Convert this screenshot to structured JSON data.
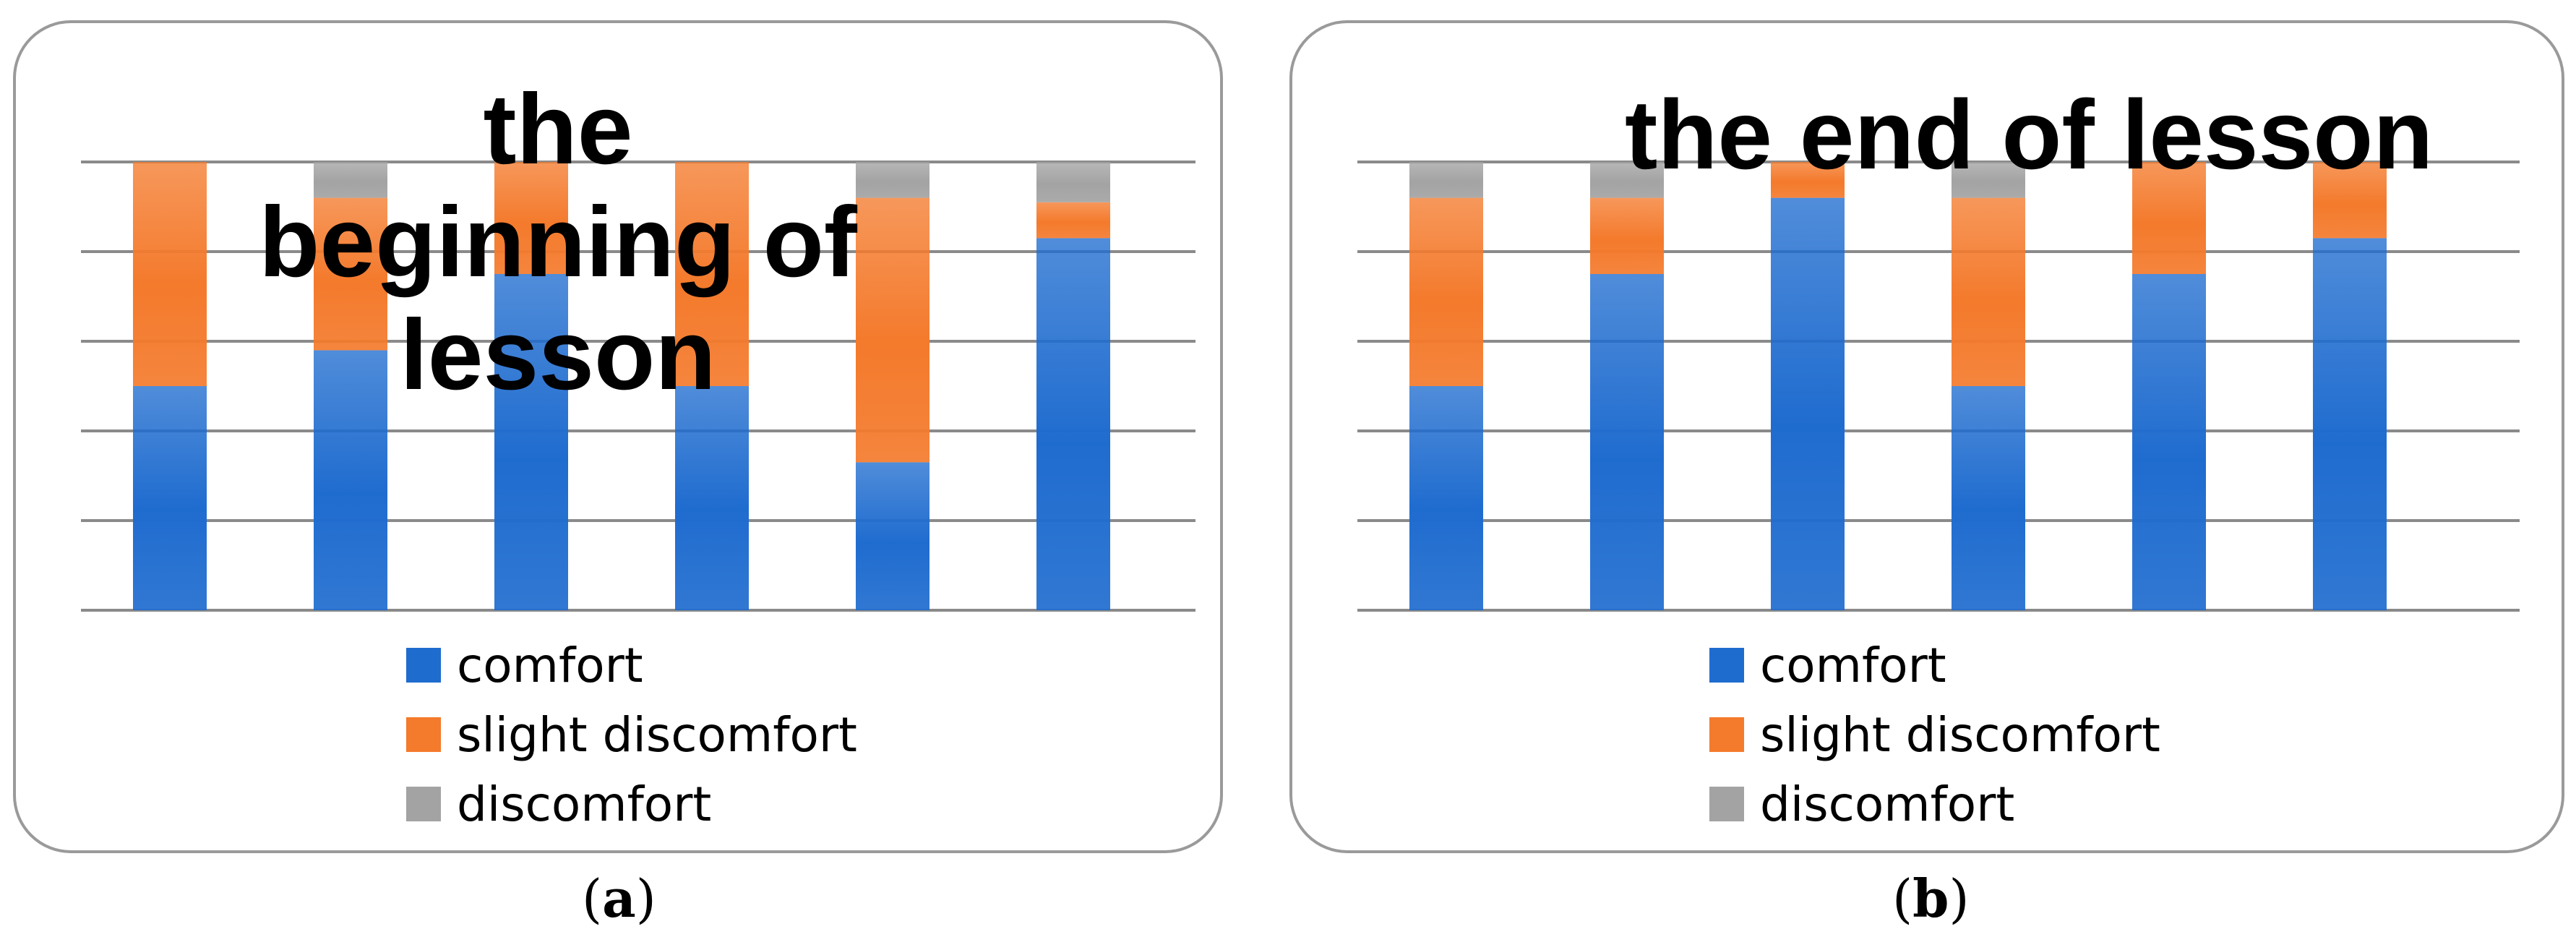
{
  "chart_data": [
    {
      "type": "bar",
      "stacked": true,
      "title": "the beginning of lesson",
      "categories": [
        "",
        "",
        "",
        "",
        "",
        ""
      ],
      "series": [
        {
          "name": "comfort",
          "values": [
            50,
            58,
            75,
            50,
            33,
            83
          ]
        },
        {
          "name": "slight discomfort",
          "values": [
            50,
            34,
            25,
            50,
            59,
            8
          ]
        },
        {
          "name": "discomfort",
          "values": [
            0,
            8,
            0,
            0,
            8,
            9
          ]
        }
      ],
      "ylim": [
        0,
        100
      ],
      "grid": true,
      "legend": "bottom"
    },
    {
      "type": "bar",
      "stacked": true,
      "title": "the end of lesson",
      "categories": [
        "",
        "",
        "",
        "",
        "",
        ""
      ],
      "series": [
        {
          "name": "comfort",
          "values": [
            50,
            75,
            92,
            50,
            75,
            83
          ]
        },
        {
          "name": "slight discomfort",
          "values": [
            42,
            17,
            8,
            42,
            25,
            17
          ]
        },
        {
          "name": "discomfort",
          "values": [
            8,
            8,
            0,
            8,
            0,
            0
          ]
        }
      ],
      "ylim": [
        0,
        100
      ],
      "grid": true,
      "legend": "bottom"
    }
  ],
  "colors": {
    "comfort": "#1f6ccf",
    "slight_discomfort": "#f47a2c",
    "discomfort": "#a3a3a3",
    "gridline": "#8a8a8a",
    "panel_border": "#9a9a9a"
  },
  "captions": {
    "a": "a",
    "b": "b"
  }
}
